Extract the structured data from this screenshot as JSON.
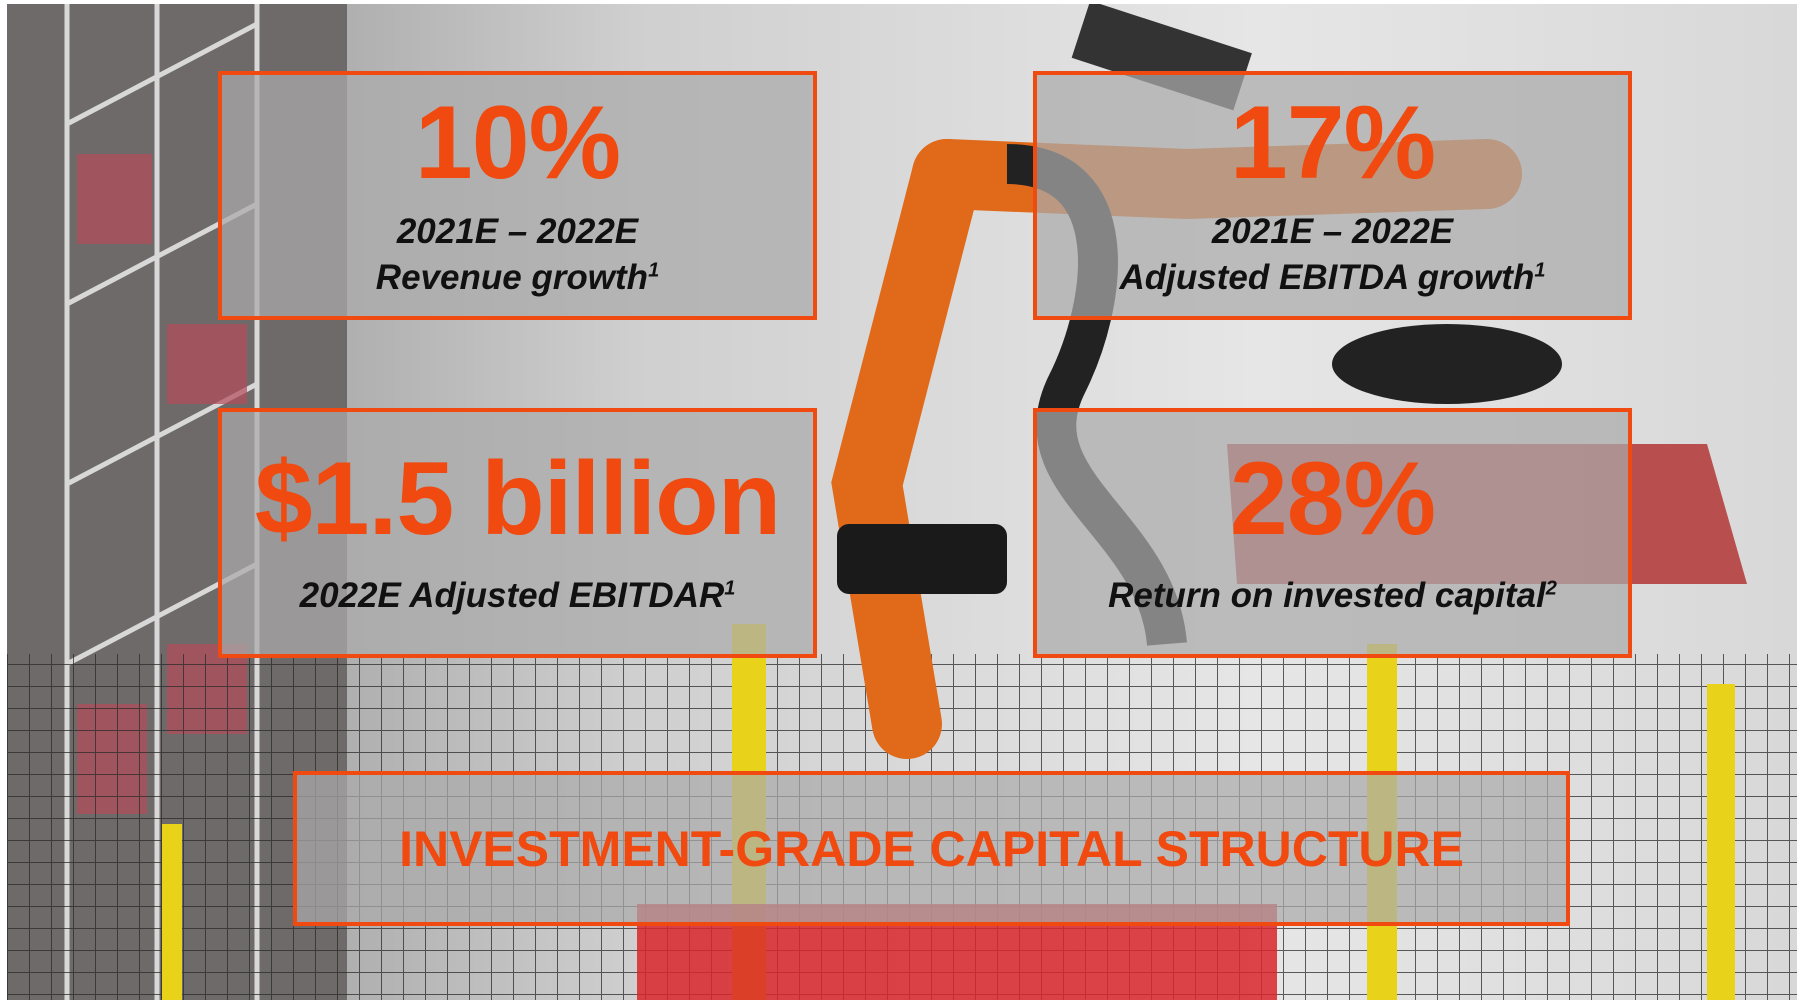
{
  "tiles": [
    {
      "value": "10%",
      "lines": [
        "2021E – 2022E",
        "Revenue growth"
      ],
      "footnote": "1"
    },
    {
      "value": "17%",
      "lines": [
        "2021E – 2022E",
        "Adjusted EBITDA growth"
      ],
      "footnote": "1"
    },
    {
      "value": "$1.5 billion",
      "lines": [
        "2022E Adjusted EBITDAR"
      ],
      "footnote": "1"
    },
    {
      "value": "28%",
      "lines": [
        "Return on invested capital"
      ],
      "footnote": "2"
    }
  ],
  "banner": "INVESTMENT-GRADE CAPITAL STRUCTURE"
}
